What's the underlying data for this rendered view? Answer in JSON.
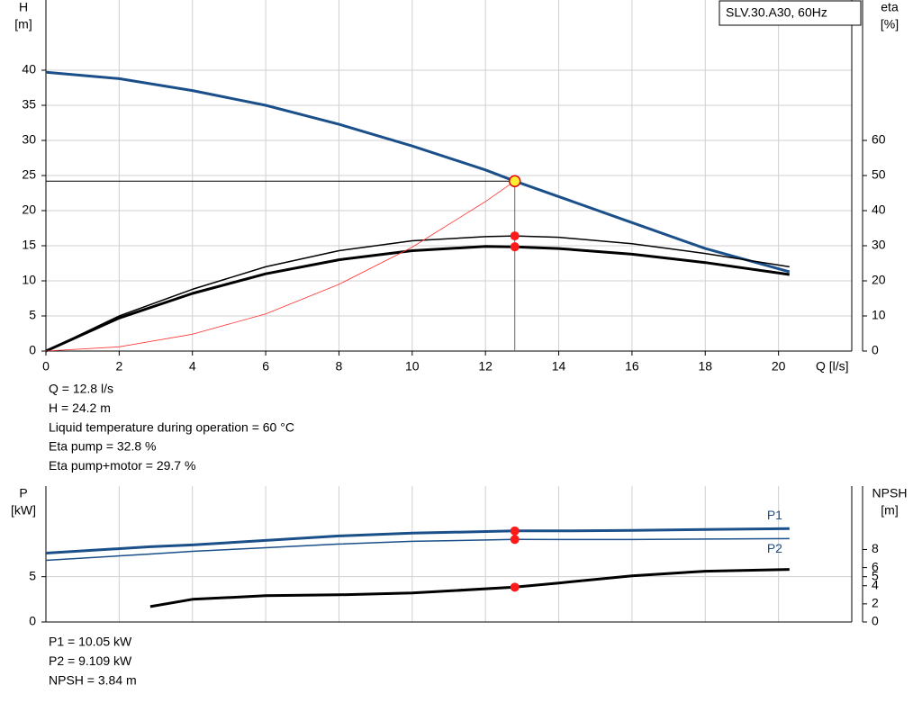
{
  "chart_data": [
    {
      "type": "line",
      "legend_text": "SLV.30.A30, 60Hz",
      "ylabel": [
        "H",
        "[m]"
      ],
      "y2label": [
        "eta",
        "[%]"
      ],
      "xlabel": "Q [l/s]",
      "xlim": [
        0,
        22
      ],
      "xticks": [
        0,
        2,
        4,
        6,
        8,
        10,
        12,
        14,
        16,
        18,
        20
      ],
      "xtick_labels": true,
      "ylim": [
        0,
        50
      ],
      "yticks": [
        0,
        5,
        10,
        15,
        20,
        25,
        30,
        35,
        40
      ],
      "y2lim": [
        0,
        100
      ],
      "y2ticks": [
        0,
        10,
        20,
        30,
        40,
        50,
        60
      ],
      "grid": true,
      "x": [
        0,
        2,
        4,
        6,
        8,
        10,
        12,
        12.8,
        14,
        16,
        18,
        20.3
      ],
      "series": [
        {
          "color": "#1a4f8a",
          "width": 3,
          "axis": "y",
          "values": [
            39.7,
            38.8,
            37.1,
            35.0,
            32.3,
            29.2,
            25.8,
            24.2,
            22.0,
            18.3,
            14.6,
            11.3
          ]
        },
        {
          "color": "#000000",
          "width": 1.5,
          "axis": "y2",
          "values": [
            0,
            10,
            17.6,
            24,
            28.6,
            31.4,
            32.6,
            32.8,
            32.4,
            30.6,
            27.8,
            24
          ]
        },
        {
          "color": "#000000",
          "width": 3,
          "axis": "y2",
          "values": [
            0,
            9.4,
            16.4,
            22,
            26,
            28.6,
            29.8,
            29.7,
            29.2,
            27.6,
            25.2,
            21.8
          ]
        },
        {
          "color": "#ff3030",
          "width": 0.8,
          "axis": "y",
          "values": [
            0,
            0.6,
            2.4,
            5.3,
            9.5,
            14.8,
            21.3,
            24.2,
            null,
            null,
            null,
            null
          ]
        }
      ],
      "markers": [
        {
          "x": 12.8,
          "y": 24.2,
          "axis": "y",
          "fill": "#ffee33"
        },
        {
          "x": 12.8,
          "y": 32.8,
          "axis": "y2",
          "fill": "#ff1a1a"
        },
        {
          "x": 12.8,
          "y": 29.7,
          "axis": "y2",
          "fill": "#ff1a1a"
        }
      ],
      "notes": [
        "Q = 12.8 l/s",
        "H = 24.2 m",
        "Liquid temperature during operation = 60 °C",
        "Eta pump = 32.8 %",
        "Eta pump+motor = 29.7 %"
      ]
    },
    {
      "type": "line",
      "ylabel": [
        "P",
        "[kW]"
      ],
      "y2label": [
        "NPSH",
        "[m]"
      ],
      "xlim": [
        0,
        22
      ],
      "xticks": [
        0,
        2,
        4,
        6,
        8,
        10,
        12,
        14,
        16,
        18,
        20
      ],
      "xtick_labels": false,
      "ylim": [
        0,
        15
      ],
      "yticks": [
        0,
        5
      ],
      "y2lim": [
        0,
        15
      ],
      "y2ticks": [
        0,
        2,
        4,
        5,
        6,
        8
      ],
      "grid": true,
      "x": [
        0,
        2.85,
        4,
        6,
        8,
        10,
        12.8,
        14,
        16,
        18,
        20.3
      ],
      "series": [
        {
          "name": "P1",
          "color": "#1a4f8a",
          "width": 3,
          "axis": "y",
          "values": [
            7.6,
            8.3,
            8.5,
            9.0,
            9.5,
            9.8,
            10.05,
            10.05,
            10.1,
            10.2,
            10.3
          ]
        },
        {
          "name": "P2",
          "color": "#1a4f8a",
          "width": 1.5,
          "axis": "y",
          "values": [
            6.8,
            7.5,
            7.8,
            8.2,
            8.6,
            8.9,
            9.109,
            9.1,
            9.1,
            9.15,
            9.2
          ]
        },
        {
          "color": "#000000",
          "width": 3,
          "axis": "y2",
          "values": [
            null,
            1.7,
            2.5,
            2.9,
            3.0,
            3.2,
            3.84,
            4.3,
            5.1,
            5.6,
            5.8
          ]
        }
      ],
      "markers": [
        {
          "x": 12.8,
          "y": 10.05,
          "axis": "y",
          "fill": "#ff1a1a"
        },
        {
          "x": 12.8,
          "y": 9.109,
          "axis": "y",
          "fill": "#ff1a1a"
        },
        {
          "x": 12.8,
          "y": 3.84,
          "axis": "y2",
          "fill": "#ff1a1a"
        }
      ],
      "notes": [
        "P1 = 10.05 kW",
        "P2 = 9.109 kW",
        "NPSH = 3.84 m"
      ]
    }
  ]
}
